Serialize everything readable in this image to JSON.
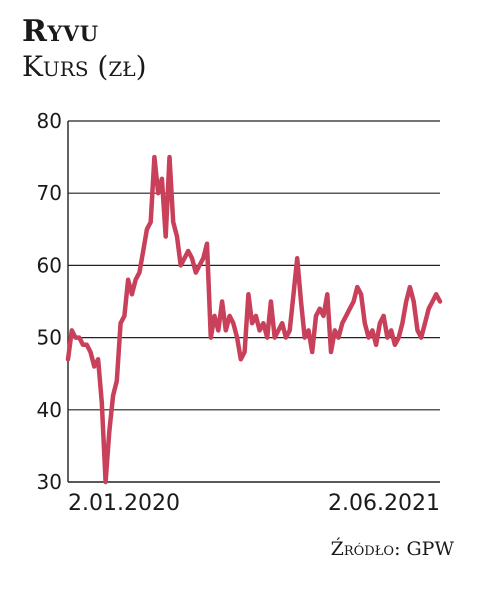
{
  "header": {
    "title": "Ryvu",
    "subtitle": "Kurs (zł)"
  },
  "source": "Źródło: GPW",
  "chart_data": {
    "type": "line",
    "title": "Ryvu",
    "ylabel": "Kurs (zł)",
    "xlabel": "",
    "ylim": [
      30,
      80
    ],
    "yticks": [
      30,
      40,
      50,
      60,
      70,
      80
    ],
    "xtick_labels": [
      {
        "label": "2.01.2020",
        "x": 0
      },
      {
        "label": "2.06.2021",
        "x": 97
      }
    ],
    "grid": "horizontal",
    "series": [
      {
        "color": "#c8405a",
        "x": [
          0,
          1,
          2,
          3,
          4,
          5,
          6,
          7,
          8,
          9,
          10,
          11,
          12,
          13,
          14,
          15,
          16,
          17,
          18,
          19,
          20,
          21,
          22,
          23,
          24,
          25,
          26,
          27,
          28,
          29,
          30,
          31,
          32,
          33,
          34,
          35,
          36,
          37,
          38,
          39,
          40,
          41,
          42,
          43,
          44,
          45,
          46,
          47,
          48,
          49,
          50,
          51,
          52,
          53,
          54,
          55,
          56,
          57,
          58,
          59,
          60,
          61,
          62,
          63,
          64,
          65,
          66,
          67,
          68,
          69,
          70,
          71,
          72,
          73,
          74,
          75,
          76,
          77,
          78,
          79,
          80,
          81,
          82,
          83,
          84,
          85,
          86,
          87,
          88,
          89,
          90,
          91,
          92,
          93,
          94,
          95,
          96,
          97,
          98,
          99
        ],
        "values": [
          47,
          51,
          50,
          50,
          49,
          49,
          48,
          46,
          47,
          41,
          30,
          37,
          42,
          44,
          52,
          53,
          58,
          56,
          58,
          59,
          62,
          65,
          66,
          75,
          70,
          72,
          64,
          75,
          66,
          64,
          60,
          61,
          62,
          61,
          59,
          60,
          61,
          63,
          50,
          53,
          51,
          55,
          51,
          53,
          52,
          50,
          47,
          48,
          56,
          52,
          53,
          51,
          52,
          50,
          55,
          50,
          51,
          52,
          50,
          51,
          56,
          61,
          55,
          50,
          51,
          48,
          53,
          54,
          53,
          56,
          48,
          51,
          50,
          52,
          53,
          54,
          55,
          57,
          56,
          52,
          50,
          51,
          49,
          52,
          53,
          50,
          51,
          49,
          50,
          52,
          55,
          57,
          55,
          51,
          50,
          52,
          54,
          55,
          56,
          55
        ]
      }
    ]
  }
}
